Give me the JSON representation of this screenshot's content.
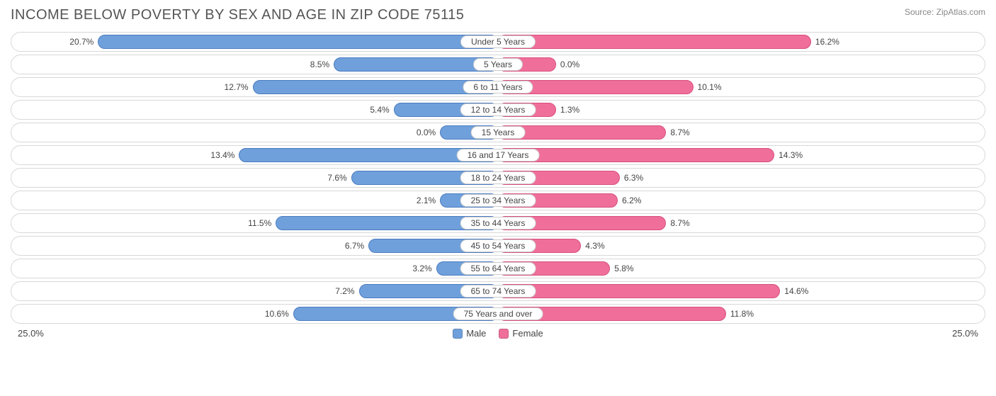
{
  "title": "INCOME BELOW POVERTY BY SEX AND AGE IN ZIP CODE 75115",
  "source": "Source: ZipAtlas.com",
  "axis_max": 25.0,
  "axis_label_left": "25.0%",
  "axis_label_right": "25.0%",
  "legend": {
    "male": "Male",
    "female": "Female"
  },
  "colors": {
    "male_fill": "#6fa0db",
    "male_border": "#4a7bc0",
    "female_fill": "#ef6f9a",
    "female_border": "#d84e7d",
    "row_border": "#d8d8d8",
    "text": "#444444",
    "title_text": "#555555",
    "source_text": "#888888",
    "background": "#ffffff"
  },
  "rows": [
    {
      "category": "Under 5 Years",
      "male": 20.7,
      "female": 16.2
    },
    {
      "category": "5 Years",
      "male": 8.5,
      "female": 0.0
    },
    {
      "category": "6 to 11 Years",
      "male": 12.7,
      "female": 10.1
    },
    {
      "category": "12 to 14 Years",
      "male": 5.4,
      "female": 1.3
    },
    {
      "category": "15 Years",
      "male": 0.0,
      "female": 8.7
    },
    {
      "category": "16 and 17 Years",
      "male": 13.4,
      "female": 14.3
    },
    {
      "category": "18 to 24 Years",
      "male": 7.6,
      "female": 6.3
    },
    {
      "category": "25 to 34 Years",
      "male": 2.1,
      "female": 6.2
    },
    {
      "category": "35 to 44 Years",
      "male": 11.5,
      "female": 8.7
    },
    {
      "category": "45 to 54 Years",
      "male": 6.7,
      "female": 4.3
    },
    {
      "category": "55 to 64 Years",
      "male": 3.2,
      "female": 5.8
    },
    {
      "category": "65 to 74 Years",
      "male": 7.2,
      "female": 14.6
    },
    {
      "category": "75 Years and over",
      "male": 10.6,
      "female": 11.8
    }
  ]
}
